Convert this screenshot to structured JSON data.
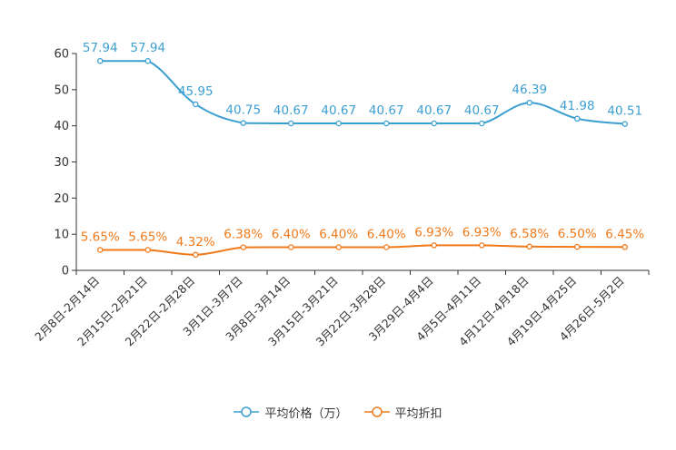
{
  "chart_data": {
    "type": "line",
    "title": "",
    "xlabel": "",
    "ylabel": "",
    "ylim": [
      0,
      60
    ],
    "yticks": [
      "0",
      "10",
      "20",
      "30",
      "40",
      "50",
      "60"
    ],
    "categories": [
      "2月8日-2月14日",
      "2月15日-2月21日",
      "2月22日-2月28日",
      "3月1日-3月7日",
      "3月8日-3月14日",
      "3月15日-3月21日",
      "3月22日-3月28日",
      "3月29日-4月4日",
      "4月5日-4月11日",
      "4月12日-4月18日",
      "4月19日-4月25日",
      "4月26日-5月2日"
    ],
    "series": [
      {
        "name": "平均价格（万）",
        "color": "#3b9fd1",
        "values": [
          57.94,
          57.94,
          45.95,
          40.75,
          40.67,
          40.67,
          40.67,
          40.67,
          40.67,
          46.39,
          41.98,
          40.51
        ],
        "labels": [
          "57.94",
          "57.94",
          "45.95",
          "40.75",
          "40.67",
          "40.67",
          "40.67",
          "40.67",
          "40.67",
          "46.39",
          "41.98",
          "40.51"
        ]
      },
      {
        "name": "平均折扣",
        "color": "#f07a1a",
        "values": [
          5.65,
          5.65,
          4.32,
          6.38,
          6.4,
          6.4,
          6.4,
          6.93,
          6.93,
          6.58,
          6.5,
          6.45
        ],
        "labels": [
          "5.65%",
          "5.65%",
          "4.32%",
          "6.38%",
          "6.40%",
          "6.40%",
          "6.40%",
          "6.93%",
          "6.93%",
          "6.58%",
          "6.50%",
          "6.45%"
        ]
      }
    ],
    "legend_position": "bottom",
    "grid": false
  }
}
